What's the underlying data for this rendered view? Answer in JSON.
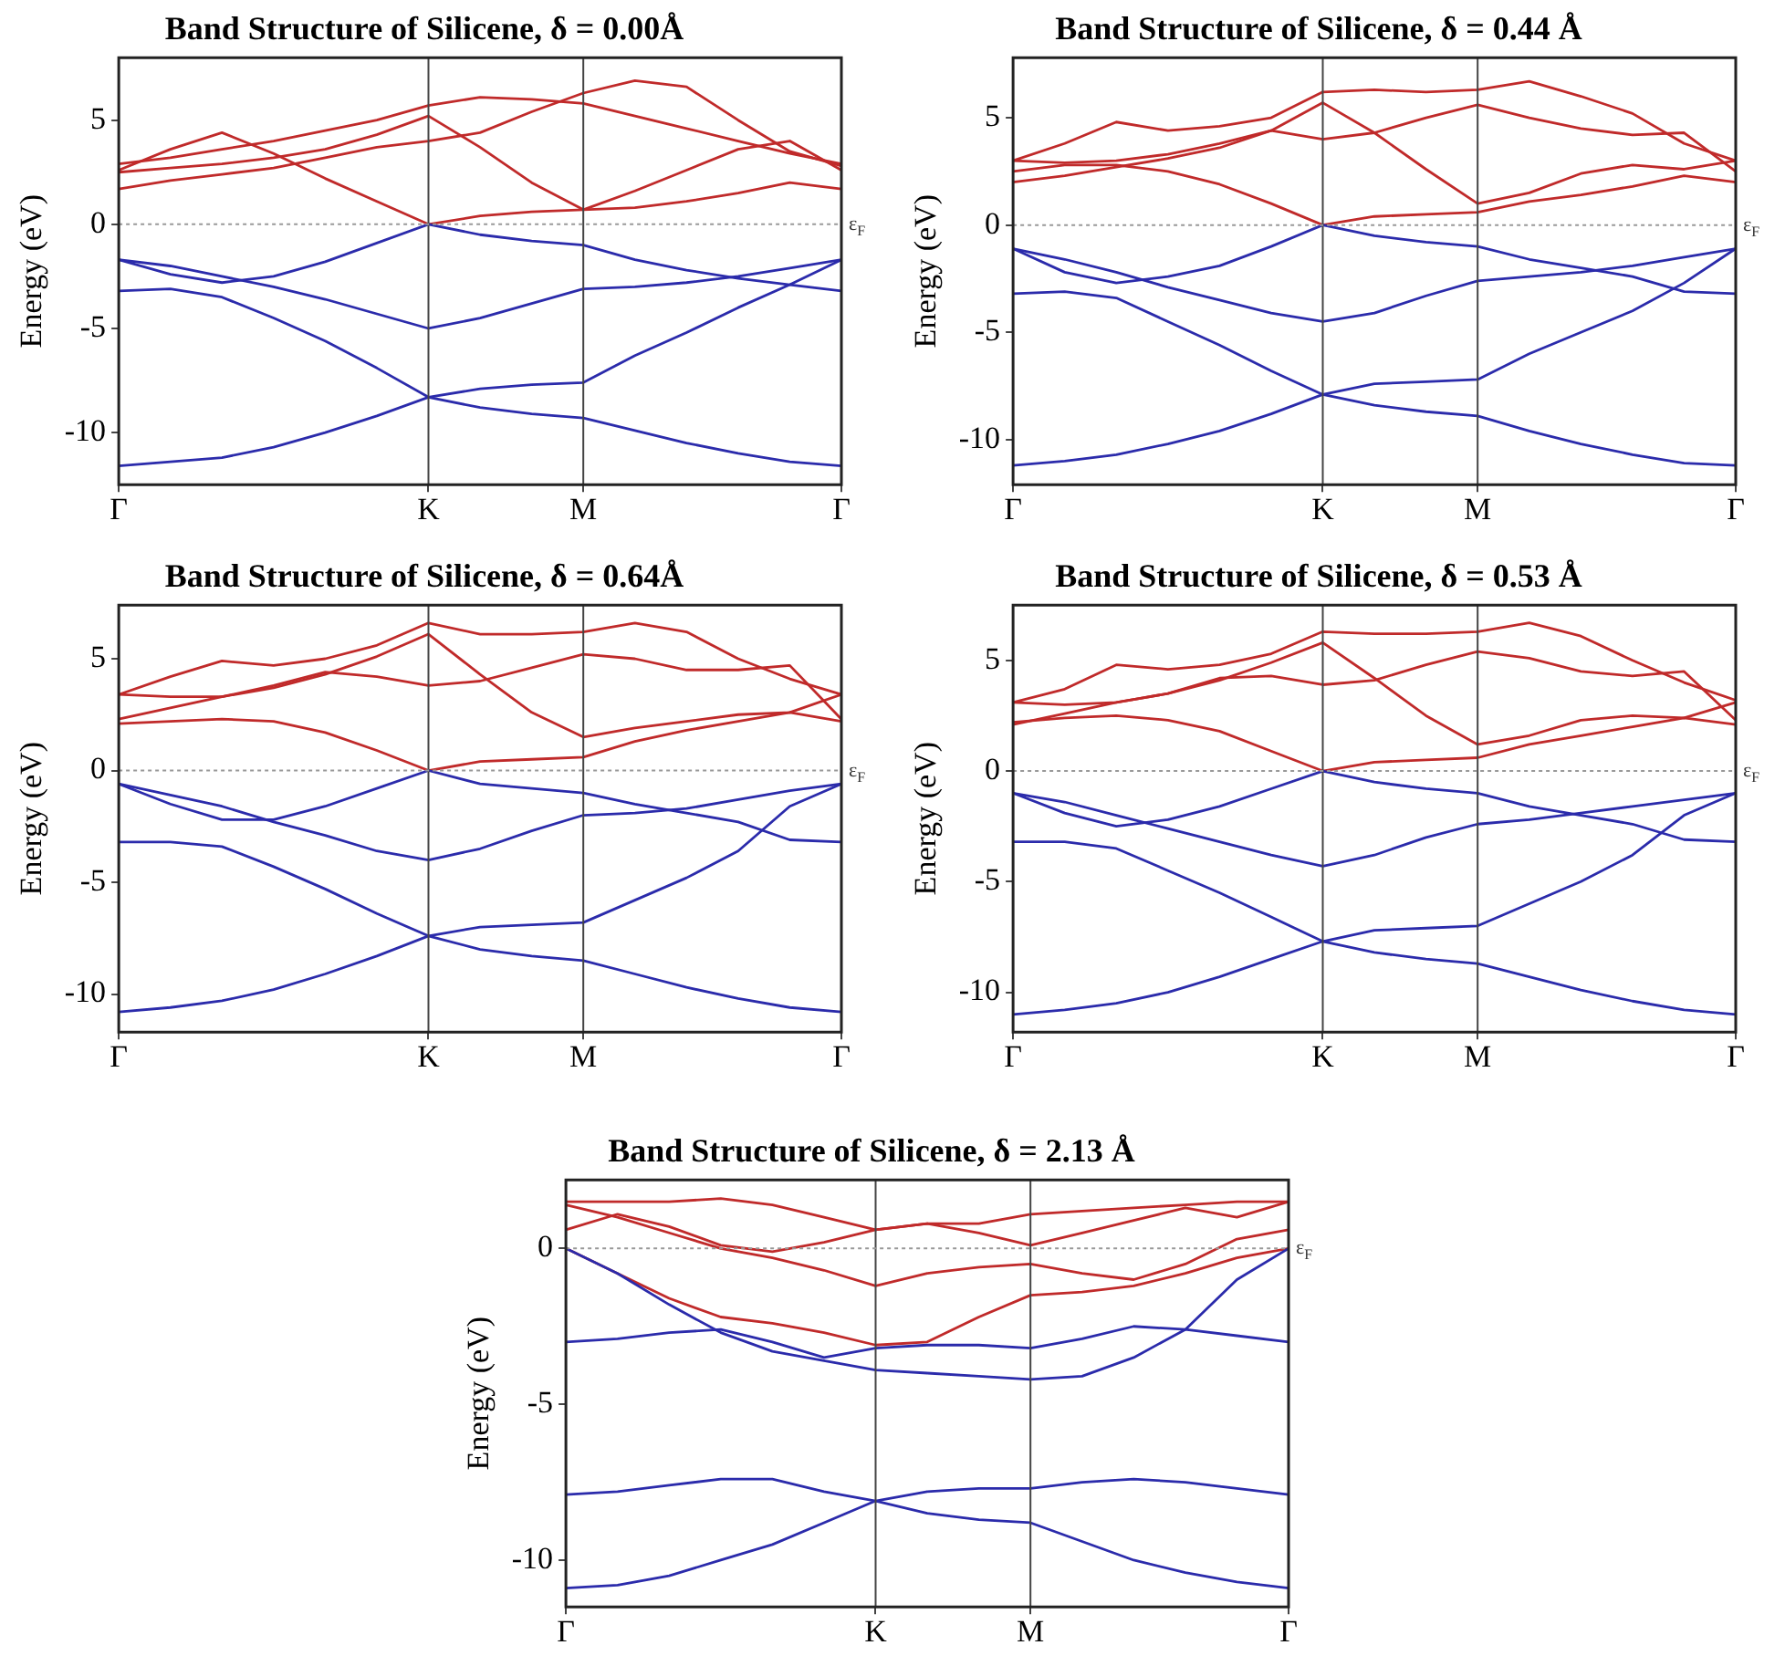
{
  "chart_data": [
    {
      "type": "line",
      "title": "Band Structure of Silicene, δ = 0.00Å",
      "ylabel": "Energy (eV)",
      "categories": [
        "Γ",
        null,
        null,
        null,
        null,
        null,
        "K",
        null,
        null,
        "M",
        null,
        null,
        null,
        null,
        "Γ"
      ],
      "ylim": [
        -12.5,
        8
      ],
      "yticks": [
        -10,
        -5,
        0,
        5
      ],
      "grid": false,
      "legend": false,
      "marker": "none",
      "line_style": "solid",
      "ref_lines": [
        {
          "axis": "x",
          "value": "K",
          "color": "#444444",
          "line_style": "solid"
        },
        {
          "axis": "x",
          "value": "M",
          "color": "#444444",
          "line_style": "solid"
        },
        {
          "axis": "y",
          "value": 0,
          "label": "ε$_{F}$",
          "color": "#999999",
          "line_style": "dotted"
        }
      ],
      "series": [
        {
          "color": "#2b2bab",
          "values": [
            -1.7,
            -2.4,
            -2.8,
            -2.5,
            -1.8,
            -0.9,
            0,
            -0.5,
            -0.8,
            -1.0,
            -1.7,
            -2.2,
            -2.6,
            -2.9,
            -3.2
          ]
        },
        {
          "color": "#2b2bab",
          "values": [
            -1.7,
            -2.0,
            -2.5,
            -3.0,
            -3.6,
            -4.3,
            -5.0,
            -4.5,
            -3.8,
            -3.1,
            -3.0,
            -2.8,
            -2.5,
            -2.1,
            -1.7
          ]
        },
        {
          "color": "#2b2bab",
          "values": [
            -3.2,
            -3.1,
            -3.5,
            -4.5,
            -5.6,
            -6.9,
            -8.3,
            -7.9,
            -7.7,
            -7.6,
            -6.3,
            -5.2,
            -4.0,
            -2.9,
            -1.7
          ]
        },
        {
          "color": "#2b2bab",
          "values": [
            -11.6,
            -11.4,
            -11.2,
            -10.7,
            -10.0,
            -9.2,
            -8.3,
            -8.8,
            -9.1,
            -9.3,
            -9.9,
            -10.5,
            -11.0,
            -11.4,
            -11.6
          ]
        },
        {
          "color": "#c02a2a",
          "values": [
            2.6,
            3.6,
            4.4,
            3.4,
            2.2,
            1.1,
            0,
            0.4,
            0.6,
            0.7,
            0.8,
            1.1,
            1.5,
            2.0,
            1.7
          ]
        },
        {
          "color": "#c02a2a",
          "values": [
            1.7,
            2.1,
            2.4,
            2.7,
            3.2,
            3.7,
            4.0,
            4.4,
            5.4,
            6.3,
            6.9,
            6.6,
            5.0,
            3.5,
            2.8
          ]
        },
        {
          "color": "#c02a2a",
          "values": [
            2.5,
            2.7,
            2.9,
            3.2,
            3.6,
            4.3,
            5.2,
            3.7,
            2.0,
            0.7,
            1.6,
            2.6,
            3.6,
            4.0,
            2.6
          ]
        },
        {
          "color": "#c02a2a",
          "values": [
            2.9,
            3.2,
            3.6,
            4.0,
            4.5,
            5.0,
            5.7,
            6.1,
            6.0,
            5.8,
            5.2,
            4.6,
            4.0,
            3.4,
            2.9
          ]
        }
      ]
    },
    {
      "type": "line",
      "title": "Band Structure of Silicene, δ = 0.44 Å",
      "ylabel": "Energy (eV)",
      "categories": [
        "Γ",
        null,
        null,
        null,
        null,
        null,
        "K",
        null,
        null,
        "M",
        null,
        null,
        null,
        null,
        "Γ"
      ],
      "ylim": [
        -12.1,
        7.8
      ],
      "yticks": [
        -10,
        -5,
        0,
        5
      ],
      "grid": false,
      "legend": false,
      "marker": "none",
      "line_style": "solid",
      "ref_lines": [
        {
          "axis": "x",
          "value": "K",
          "color": "#444444",
          "line_style": "solid"
        },
        {
          "axis": "x",
          "value": "M",
          "color": "#444444",
          "line_style": "solid"
        },
        {
          "axis": "y",
          "value": 0,
          "label": "ε$_{F}$",
          "color": "#999999",
          "line_style": "dotted"
        }
      ],
      "series": [
        {
          "color": "#2b2bab",
          "values": [
            -1.1,
            -2.2,
            -2.7,
            -2.4,
            -1.9,
            -1.0,
            0,
            -0.5,
            -0.8,
            -1.0,
            -1.6,
            -2.0,
            -2.4,
            -3.1,
            -3.2
          ]
        },
        {
          "color": "#2b2bab",
          "values": [
            -1.1,
            -1.6,
            -2.2,
            -2.9,
            -3.5,
            -4.1,
            -4.5,
            -4.1,
            -3.3,
            -2.6,
            -2.4,
            -2.2,
            -1.9,
            -1.5,
            -1.1
          ]
        },
        {
          "color": "#2b2bab",
          "values": [
            -3.2,
            -3.1,
            -3.4,
            -4.5,
            -5.6,
            -6.8,
            -7.9,
            -7.4,
            -7.3,
            -7.2,
            -6.0,
            -5.0,
            -4.0,
            -2.7,
            -1.1
          ]
        },
        {
          "color": "#2b2bab",
          "values": [
            -11.2,
            -11.0,
            -10.7,
            -10.2,
            -9.6,
            -8.8,
            -7.9,
            -8.4,
            -8.7,
            -8.9,
            -9.6,
            -10.2,
            -10.7,
            -11.1,
            -11.2
          ]
        },
        {
          "color": "#c02a2a",
          "values": [
            2.5,
            2.8,
            2.8,
            2.5,
            1.9,
            1.0,
            0,
            0.4,
            0.5,
            0.6,
            1.1,
            1.4,
            1.8,
            2.3,
            2.0
          ]
        },
        {
          "color": "#c02a2a",
          "values": [
            2.0,
            2.3,
            2.7,
            3.1,
            3.6,
            4.4,
            5.7,
            4.3,
            2.6,
            1.0,
            1.5,
            2.4,
            2.8,
            2.6,
            3.0
          ]
        },
        {
          "color": "#c02a2a",
          "values": [
            3.0,
            2.9,
            3.0,
            3.3,
            3.8,
            4.4,
            4.0,
            4.3,
            5.0,
            5.6,
            5.0,
            4.5,
            4.2,
            4.3,
            2.5
          ]
        },
        {
          "color": "#c02a2a",
          "values": [
            3.0,
            3.8,
            4.8,
            4.4,
            4.6,
            5.0,
            6.2,
            6.3,
            6.2,
            6.3,
            6.7,
            6.0,
            5.2,
            3.8,
            3.0
          ]
        }
      ]
    },
    {
      "type": "line",
      "title": "Band Structure of Silicene, δ = 0.64Å",
      "ylabel": "Energy (eV)",
      "categories": [
        "Γ",
        null,
        null,
        null,
        null,
        null,
        "K",
        null,
        null,
        "M",
        null,
        null,
        null,
        null,
        "Γ"
      ],
      "ylim": [
        -11.7,
        7.4
      ],
      "yticks": [
        -10,
        -5,
        0,
        5
      ],
      "grid": false,
      "legend": false,
      "marker": "none",
      "line_style": "solid",
      "ref_lines": [
        {
          "axis": "x",
          "value": "K",
          "color": "#444444",
          "line_style": "solid"
        },
        {
          "axis": "x",
          "value": "M",
          "color": "#444444",
          "line_style": "solid"
        },
        {
          "axis": "y",
          "value": 0,
          "label": "ε$_{F}$",
          "color": "#999999",
          "line_style": "dotted"
        }
      ],
      "series": [
        {
          "color": "#2b2bab",
          "values": [
            -0.6,
            -1.5,
            -2.2,
            -2.2,
            -1.6,
            -0.8,
            0,
            -0.6,
            -0.8,
            -1.0,
            -1.5,
            -1.9,
            -2.3,
            -3.1,
            -3.2
          ]
        },
        {
          "color": "#2b2bab",
          "values": [
            -0.6,
            -1.1,
            -1.6,
            -2.3,
            -2.9,
            -3.6,
            -4.0,
            -3.5,
            -2.7,
            -2.0,
            -1.9,
            -1.7,
            -1.3,
            -0.9,
            -0.6
          ]
        },
        {
          "color": "#2b2bab",
          "values": [
            -3.2,
            -3.2,
            -3.4,
            -4.3,
            -5.3,
            -6.4,
            -7.4,
            -7.0,
            -6.9,
            -6.8,
            -5.8,
            -4.8,
            -3.6,
            -1.6,
            -0.6
          ]
        },
        {
          "color": "#2b2bab",
          "values": [
            -10.8,
            -10.6,
            -10.3,
            -9.8,
            -9.1,
            -8.3,
            -7.4,
            -8.0,
            -8.3,
            -8.5,
            -9.1,
            -9.7,
            -10.2,
            -10.6,
            -10.8
          ]
        },
        {
          "color": "#c02a2a",
          "values": [
            2.1,
            2.2,
            2.3,
            2.2,
            1.7,
            0.9,
            0,
            0.4,
            0.5,
            0.6,
            1.3,
            1.8,
            2.2,
            2.6,
            2.2
          ]
        },
        {
          "color": "#c02a2a",
          "values": [
            2.3,
            2.8,
            3.3,
            3.7,
            4.3,
            5.1,
            6.1,
            4.3,
            2.6,
            1.5,
            1.9,
            2.2,
            2.5,
            2.6,
            3.4
          ]
        },
        {
          "color": "#c02a2a",
          "values": [
            3.4,
            3.3,
            3.3,
            3.8,
            4.4,
            4.2,
            3.8,
            4.0,
            4.6,
            5.2,
            5.0,
            4.5,
            4.5,
            4.7,
            2.3
          ]
        },
        {
          "color": "#c02a2a",
          "values": [
            3.4,
            4.2,
            4.9,
            4.7,
            5.0,
            5.6,
            6.6,
            6.1,
            6.1,
            6.2,
            6.6,
            6.2,
            5.0,
            4.1,
            3.4
          ]
        }
      ]
    },
    {
      "type": "line",
      "title": "Band Structure of Silicene, δ = 0.53 Å",
      "ylabel": "Energy (eV)",
      "categories": [
        "Γ",
        null,
        null,
        null,
        null,
        null,
        "K",
        null,
        null,
        "M",
        null,
        null,
        null,
        null,
        "Γ"
      ],
      "ylim": [
        -11.8,
        7.5
      ],
      "yticks": [
        -10,
        -5,
        0,
        5
      ],
      "grid": false,
      "legend": false,
      "marker": "none",
      "line_style": "solid",
      "ref_lines": [
        {
          "axis": "x",
          "value": "K",
          "color": "#444444",
          "line_style": "solid"
        },
        {
          "axis": "x",
          "value": "M",
          "color": "#444444",
          "line_style": "solid"
        },
        {
          "axis": "y",
          "value": 0,
          "label": "ε$_{F}$",
          "color": "#999999",
          "line_style": "dotted"
        }
      ],
      "series": [
        {
          "color": "#2b2bab",
          "values": [
            -1.0,
            -1.9,
            -2.5,
            -2.2,
            -1.6,
            -0.8,
            0,
            -0.5,
            -0.8,
            -1.0,
            -1.6,
            -2.0,
            -2.4,
            -3.1,
            -3.2
          ]
        },
        {
          "color": "#2b2bab",
          "values": [
            -1.0,
            -1.4,
            -2.0,
            -2.6,
            -3.2,
            -3.8,
            -4.3,
            -3.8,
            -3.0,
            -2.4,
            -2.2,
            -1.9,
            -1.6,
            -1.3,
            -1.0
          ]
        },
        {
          "color": "#2b2bab",
          "values": [
            -3.2,
            -3.2,
            -3.5,
            -4.5,
            -5.5,
            -6.6,
            -7.7,
            -7.2,
            -7.1,
            -7.0,
            -6.0,
            -5.0,
            -3.8,
            -2.0,
            -1.0
          ]
        },
        {
          "color": "#2b2bab",
          "values": [
            -11.0,
            -10.8,
            -10.5,
            -10.0,
            -9.3,
            -8.5,
            -7.7,
            -8.2,
            -8.5,
            -8.7,
            -9.3,
            -9.9,
            -10.4,
            -10.8,
            -11.0
          ]
        },
        {
          "color": "#c02a2a",
          "values": [
            2.2,
            2.4,
            2.5,
            2.3,
            1.8,
            0.9,
            0,
            0.4,
            0.5,
            0.6,
            1.2,
            1.6,
            2.0,
            2.4,
            2.1
          ]
        },
        {
          "color": "#c02a2a",
          "values": [
            2.1,
            2.6,
            3.1,
            3.5,
            4.1,
            4.9,
            5.8,
            4.2,
            2.5,
            1.2,
            1.6,
            2.3,
            2.5,
            2.4,
            3.1
          ]
        },
        {
          "color": "#c02a2a",
          "values": [
            3.1,
            3.0,
            3.1,
            3.5,
            4.2,
            4.3,
            3.9,
            4.1,
            4.8,
            5.4,
            5.1,
            4.5,
            4.3,
            4.5,
            2.3
          ]
        },
        {
          "color": "#c02a2a",
          "values": [
            3.1,
            3.7,
            4.8,
            4.6,
            4.8,
            5.3,
            6.3,
            6.2,
            6.2,
            6.3,
            6.7,
            6.1,
            5.0,
            4.0,
            3.2
          ]
        }
      ]
    },
    {
      "type": "line",
      "title": "Band Structure of Silicene, δ = 2.13 Å",
      "ylabel": "Energy (eV)",
      "categories": [
        "Γ",
        null,
        null,
        null,
        null,
        null,
        "K",
        null,
        null,
        "M",
        null,
        null,
        null,
        null,
        "Γ"
      ],
      "ylim": [
        -11.5,
        2.2
      ],
      "yticks": [
        -10,
        -5,
        0
      ],
      "grid": false,
      "legend": false,
      "marker": "none",
      "line_style": "solid",
      "ref_lines": [
        {
          "axis": "x",
          "value": "K",
          "color": "#444444",
          "line_style": "solid"
        },
        {
          "axis": "x",
          "value": "M",
          "color": "#444444",
          "line_style": "solid"
        },
        {
          "axis": "y",
          "value": 0,
          "label": "ε$_{F}$",
          "color": "#999999",
          "line_style": "dotted"
        }
      ],
      "series": [
        {
          "color": "#2b2bab",
          "values": [
            0,
            -0.8,
            -1.8,
            -2.7,
            -3.3,
            -3.6,
            -3.9,
            -4.0,
            -4.1,
            -4.2,
            -4.1,
            -3.5,
            -2.6,
            -1.0,
            0
          ]
        },
        {
          "color": "#2b2bab",
          "values": [
            -3.0,
            -2.9,
            -2.7,
            -2.6,
            -3.0,
            -3.5,
            -3.2,
            -3.1,
            -3.1,
            -3.2,
            -2.9,
            -2.5,
            -2.6,
            -2.8,
            -3.0
          ]
        },
        {
          "color": "#2b2bab",
          "values": [
            -7.9,
            -7.8,
            -7.6,
            -7.4,
            -7.4,
            -7.8,
            -8.1,
            -7.8,
            -7.7,
            -7.7,
            -7.5,
            -7.4,
            -7.5,
            -7.7,
            -7.9
          ]
        },
        {
          "color": "#2b2bab",
          "values": [
            -10.9,
            -10.8,
            -10.5,
            -10.0,
            -9.5,
            -8.8,
            -8.1,
            -8.5,
            -8.7,
            -8.8,
            -9.4,
            -10.0,
            -10.4,
            -10.7,
            -10.9
          ]
        },
        {
          "color": "#c02a2a",
          "values": [
            1.5,
            1.5,
            1.5,
            1.6,
            1.4,
            1.0,
            0.6,
            0.8,
            0.8,
            1.1,
            1.2,
            1.3,
            1.4,
            1.5,
            1.5
          ]
        },
        {
          "color": "#c02a2a",
          "values": [
            1.4,
            1.0,
            0.5,
            0.0,
            -0.3,
            -0.7,
            -1.2,
            -0.8,
            -0.6,
            -0.5,
            -0.8,
            -1.0,
            -0.5,
            0.3,
            0.6
          ]
        },
        {
          "color": "#c02a2a",
          "values": [
            0.6,
            1.1,
            0.7,
            0.1,
            -0.1,
            0.2,
            0.6,
            0.8,
            0.5,
            0.1,
            0.5,
            0.9,
            1.3,
            1.0,
            1.5
          ]
        },
        {
          "color": "#c02a2a",
          "values": [
            0,
            -0.8,
            -1.6,
            -2.2,
            -2.4,
            -2.7,
            -3.1,
            -3.0,
            -2.2,
            -1.5,
            -1.4,
            -1.2,
            -0.8,
            -0.3,
            0
          ]
        }
      ]
    }
  ]
}
